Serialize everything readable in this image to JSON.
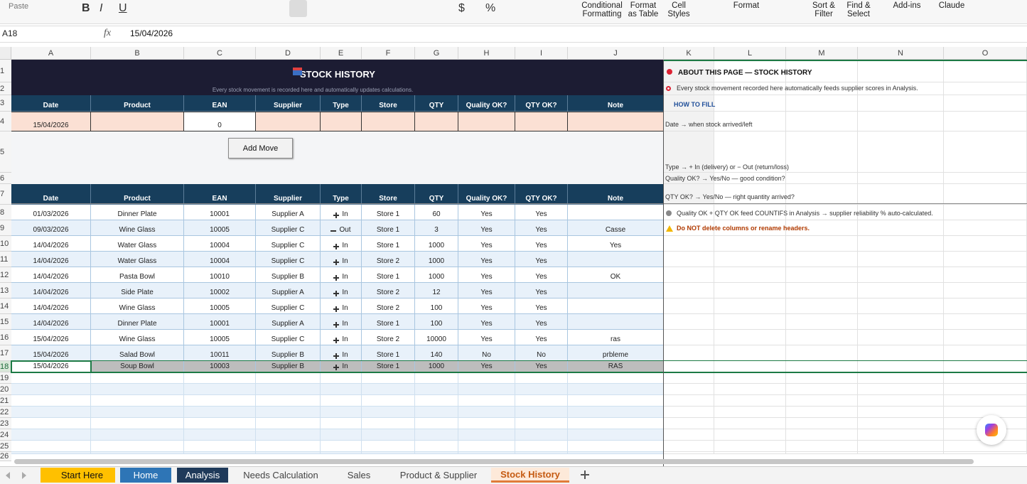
{
  "ribbon": {
    "paste": "Paste",
    "glyphs": [
      "B",
      "I",
      "U",
      "$",
      "%"
    ],
    "items": [
      [
        "Conditional",
        "Formatting"
      ],
      [
        "Format",
        "as Table"
      ],
      [
        "Cell",
        "Styles"
      ],
      [
        "Format"
      ],
      [
        "Sort &",
        "Filter"
      ],
      [
        "Find &",
        "Select"
      ],
      [
        "Add-ins"
      ],
      [
        "Claude"
      ]
    ]
  },
  "formula_bar": {
    "cell": "A18",
    "fx": "fx",
    "content": "15/04/2026"
  },
  "column_headers": [
    "A",
    "B",
    "C",
    "D",
    "E",
    "F",
    "G",
    "H",
    "I",
    "J",
    "K",
    "L",
    "M",
    "N",
    "O"
  ],
  "row_headers": [
    1,
    2,
    3,
    4,
    5,
    6,
    7,
    8,
    9,
    10,
    11,
    12,
    13,
    14,
    15,
    16,
    17,
    18,
    19,
    20,
    21,
    22,
    23,
    24,
    25,
    26
  ],
  "sheet": {
    "title": "STOCK HISTORY",
    "subtitle": "Every stock movement is recorded here and automatically updates calculations.",
    "input_headers": [
      "Date",
      "Product",
      "EAN",
      "Supplier",
      "Type",
      "Store",
      "QTY",
      "Quality OK?",
      "QTY OK?",
      "Note"
    ],
    "input_row": [
      "15/04/2026",
      null,
      0,
      null,
      null,
      null,
      null,
      null,
      null,
      null
    ],
    "button": "Add Move",
    "headers": [
      "Date",
      "Product",
      "EAN",
      "Supplier",
      "Type",
      "Store",
      "QTY",
      "Quality OK?",
      "QTY OK?",
      "Note"
    ],
    "rows": [
      [
        "01/03/2026",
        "Dinner Plate",
        10001,
        "Supplier A",
        "In",
        "Store 1",
        60,
        "Yes",
        "Yes",
        null
      ],
      [
        "09/03/2026",
        "Wine Glass",
        10005,
        "Supplier C",
        "Out",
        "Store 1",
        3,
        "Yes",
        "Yes",
        "Casse"
      ],
      [
        "14/04/2026",
        "Water Glass",
        10004,
        "Supplier C",
        "In",
        "Store 1",
        1000,
        "Yes",
        "Yes",
        "Yes"
      ],
      [
        "14/04/2026",
        "Water Glass",
        10004,
        "Supplier C",
        "In",
        "Store 2",
        1000,
        "Yes",
        "Yes",
        null
      ],
      [
        "14/04/2026",
        "Pasta Bowl",
        10010,
        "Supplier B",
        "In",
        "Store 1",
        1000,
        "Yes",
        "Yes",
        "OK"
      ],
      [
        "14/04/2026",
        "Side Plate",
        10002,
        "Supplier A",
        "In",
        "Store 2",
        12,
        "Yes",
        "Yes",
        null
      ],
      [
        "14/04/2026",
        "Wine Glass",
        10005,
        "Supplier C",
        "In",
        "Store 2",
        100,
        "Yes",
        "Yes",
        null
      ],
      [
        "14/04/2026",
        "Dinner Plate",
        10001,
        "Supplier A",
        "In",
        "Store 1",
        100,
        "Yes",
        "Yes",
        null
      ],
      [
        "15/04/2026",
        "Wine Glass",
        10005,
        "Supplier C",
        "In",
        "Store 2",
        10000,
        "Yes",
        "Yes",
        "ras"
      ],
      [
        "15/04/2026",
        "Salad Bowl",
        10011,
        "Supplier B",
        "In",
        "Store 1",
        140,
        "No",
        "No",
        "prbleme"
      ],
      [
        "15/04/2026",
        "Soup Bowl",
        10003,
        "Supplier B",
        "In",
        "Store 1",
        1000,
        "Yes",
        "Yes",
        "RAS"
      ]
    ],
    "side_panel": {
      "about": "ABOUT THIS PAGE — STOCK HISTORY",
      "intro": "Every stock movement recorded here automatically feeds supplier scores in Analysis.",
      "how_to": "HOW TO FILL",
      "date": "Date → when stock arrived/left",
      "type": "Type → + In (delivery) or − Out (return/loss)",
      "quality": "Quality OK? → Yes/No — good condition?",
      "qty": "QTY OK? → Yes/No — right quantity arrived?",
      "feed": "Quality OK + QTY OK feed COUNTIFS in Analysis → supplier reliability % auto-calculated.",
      "warning": "Do NOT delete columns or rename headers."
    }
  },
  "tabs": [
    "Start Here",
    "Home",
    "Analysis",
    "Needs Calculation",
    "Sales",
    "Product & Supplier",
    "Stock History"
  ]
}
